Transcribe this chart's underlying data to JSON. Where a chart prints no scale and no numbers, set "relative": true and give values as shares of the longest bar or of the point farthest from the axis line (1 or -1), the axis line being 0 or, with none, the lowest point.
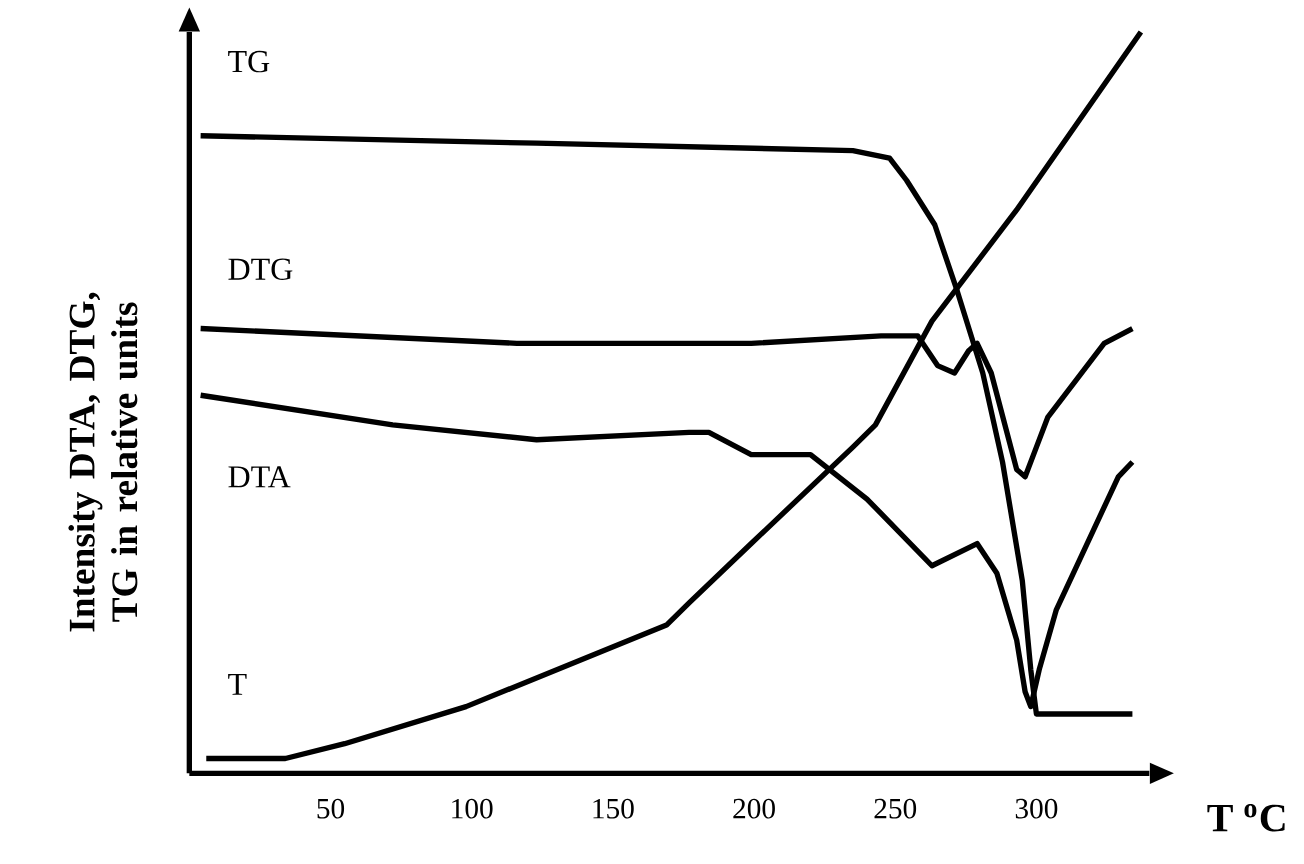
{
  "chart_data": {
    "type": "line",
    "relative": true,
    "xlabel": "T $^{o}$C",
    "ylabel": "Intensity DTA, DTG, TG in relative units",
    "xlim": [
      0,
      340
    ],
    "xticks": [
      50,
      100,
      150,
      200,
      250,
      300
    ],
    "series": [
      {
        "name": "TG",
        "color": "#000000",
        "x": [
          4,
          123,
          235,
          248,
          254,
          264,
          272,
          281,
          288,
          295,
          298,
          300,
          309,
          334
        ],
        "values": [
          0.86,
          0.85,
          0.84,
          0.83,
          0.8,
          0.74,
          0.65,
          0.54,
          0.42,
          0.26,
          0.14,
          0.08,
          0.08,
          0.08
        ]
      },
      {
        "name": "DTG",
        "color": "#000000",
        "x": [
          4,
          116,
          199,
          245,
          258,
          265,
          271,
          276,
          279,
          284,
          293,
          296,
          300,
          304,
          314,
          324,
          334
        ],
        "values": [
          0.6,
          0.58,
          0.58,
          0.59,
          0.59,
          0.55,
          0.54,
          0.57,
          0.58,
          0.54,
          0.41,
          0.4,
          0.44,
          0.48,
          0.53,
          0.58,
          0.6
        ]
      },
      {
        "name": "DTA",
        "color": "#000000",
        "x": [
          4,
          72,
          123,
          177,
          184,
          199,
          220,
          240,
          263,
          279,
          286,
          293,
          296,
          298,
          301,
          307,
          329,
          334
        ],
        "values": [
          0.51,
          0.47,
          0.45,
          0.46,
          0.46,
          0.43,
          0.43,
          0.37,
          0.28,
          0.31,
          0.27,
          0.18,
          0.11,
          0.09,
          0.14,
          0.22,
          0.4,
          0.42
        ]
      },
      {
        "name": "T",
        "color": "#000000",
        "x": [
          6,
          34,
          55,
          98,
          169,
          177,
          199,
          235,
          243,
          263,
          293,
          337
        ],
        "values": [
          0.02,
          0.02,
          0.04,
          0.09,
          0.2,
          0.23,
          0.31,
          0.44,
          0.47,
          0.61,
          0.76,
          1.0
        ]
      }
    ]
  }
}
